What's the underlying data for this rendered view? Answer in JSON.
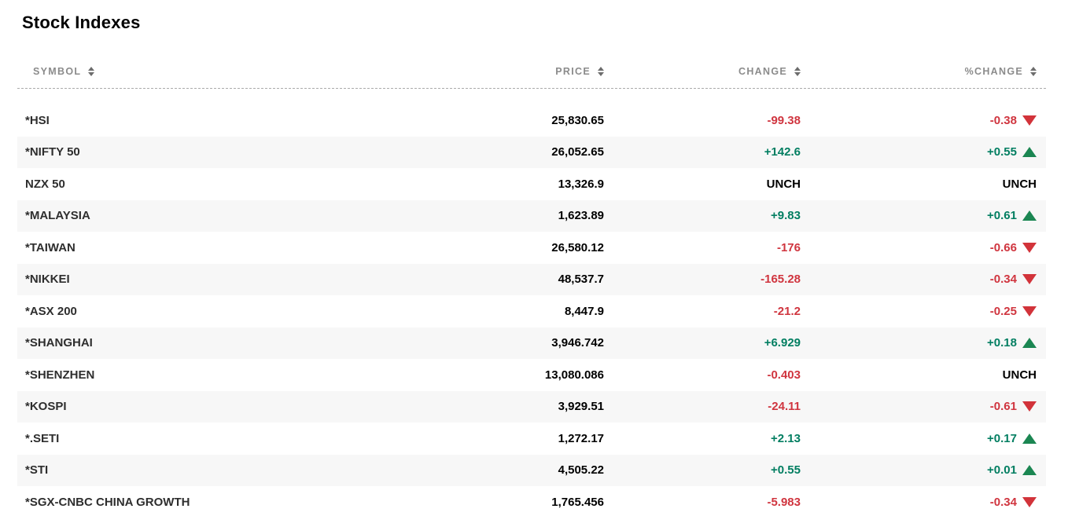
{
  "page": {
    "title": "Stock Indexes"
  },
  "table": {
    "columns": [
      {
        "key": "symbol",
        "label": "SYMBOL"
      },
      {
        "key": "price",
        "label": "PRICE"
      },
      {
        "key": "change",
        "label": "CHANGE"
      },
      {
        "key": "pct_change",
        "label": "%CHANGE"
      }
    ],
    "sort_icon": "up-down-sort-arrows",
    "rows": [
      {
        "symbol": "*HSI",
        "price": "25,830.65",
        "change": "-99.38",
        "change_dir": "down",
        "pct_change": "-0.38",
        "pct_dir": "down"
      },
      {
        "symbol": "*NIFTY 50",
        "price": "26,052.65",
        "change": "+142.6",
        "change_dir": "up",
        "pct_change": "+0.55",
        "pct_dir": "up"
      },
      {
        "symbol": "NZX 50",
        "price": "13,326.9",
        "change": "UNCH",
        "change_dir": "unch",
        "pct_change": "UNCH",
        "pct_dir": "unch"
      },
      {
        "symbol": "*MALAYSIA",
        "price": "1,623.89",
        "change": "+9.83",
        "change_dir": "up",
        "pct_change": "+0.61",
        "pct_dir": "up"
      },
      {
        "symbol": "*TAIWAN",
        "price": "26,580.12",
        "change": "-176",
        "change_dir": "down",
        "pct_change": "-0.66",
        "pct_dir": "down"
      },
      {
        "symbol": "*NIKKEI",
        "price": "48,537.7",
        "change": "-165.28",
        "change_dir": "down",
        "pct_change": "-0.34",
        "pct_dir": "down"
      },
      {
        "symbol": "*ASX 200",
        "price": "8,447.9",
        "change": "-21.2",
        "change_dir": "down",
        "pct_change": "-0.25",
        "pct_dir": "down"
      },
      {
        "symbol": "*SHANGHAI",
        "price": "3,946.742",
        "change": "+6.929",
        "change_dir": "up",
        "pct_change": "+0.18",
        "pct_dir": "up"
      },
      {
        "symbol": "*SHENZHEN",
        "price": "13,080.086",
        "change": "-0.403",
        "change_dir": "down",
        "pct_change": "UNCH",
        "pct_dir": "unch"
      },
      {
        "symbol": "*KOSPI",
        "price": "3,929.51",
        "change": "-24.11",
        "change_dir": "down",
        "pct_change": "-0.61",
        "pct_dir": "down"
      },
      {
        "symbol": "*.SETI",
        "price": "1,272.17",
        "change": "+2.13",
        "change_dir": "up",
        "pct_change": "+0.17",
        "pct_dir": "up"
      },
      {
        "symbol": "*STI",
        "price": "4,505.22",
        "change": "+0.55",
        "change_dir": "up",
        "pct_change": "+0.01",
        "pct_dir": "up"
      },
      {
        "symbol": "*SGX-CNBC CHINA GROWTH",
        "price": "1,765.456",
        "change": "-5.983",
        "change_dir": "down",
        "pct_change": "-0.34",
        "pct_dir": "down"
      }
    ]
  },
  "colors": {
    "positive_text": "#027e61",
    "negative_text": "#d0353f",
    "up_triangle": "#1b8652",
    "down_triangle": "#d2333a",
    "header_text": "#8b8b8b",
    "row_alt_bg": "#f7f7f7"
  }
}
